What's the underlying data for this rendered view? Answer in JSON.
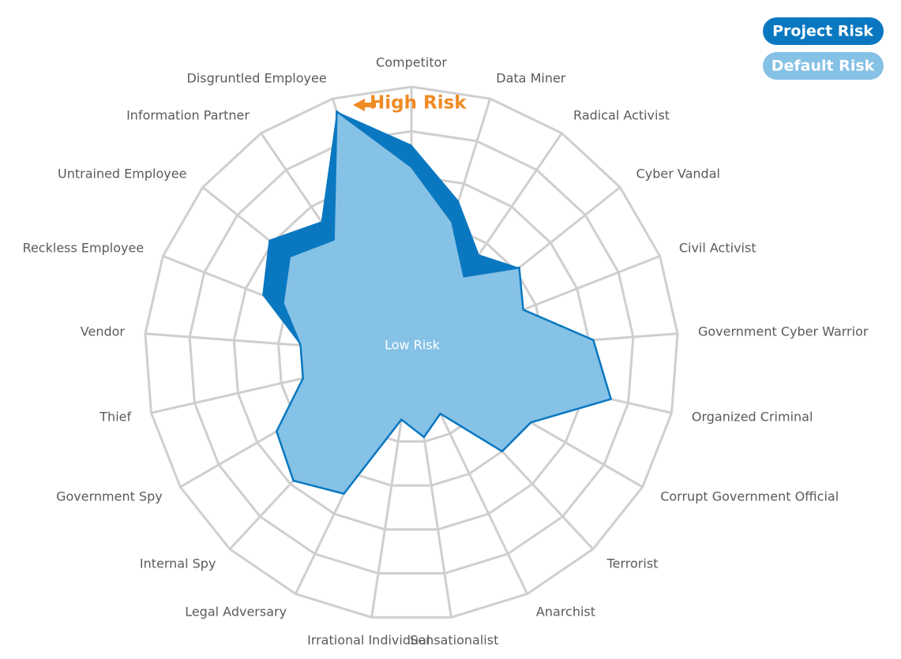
{
  "chart_data": {
    "type": "radar",
    "categories": [
      "Competitor",
      "Data Miner",
      "Radical Activist",
      "Cyber Vandal",
      "Civil Activist",
      "Government Cyber Warrior",
      "Organized Criminal",
      "Corrupt Government Official",
      "Terrorist",
      "Anarchist",
      "Sensationalist",
      "Irrational Individual",
      "Legal Adversary",
      "Internal Spy",
      "Government Spy",
      "Thief",
      "Vendor",
      "Reckless Employee",
      "Untrained Employee",
      "Information Partner",
      "Disgruntled Employee"
    ],
    "series": [
      {
        "name": "Project Risk",
        "color": "#0a78c0",
        "values": [
          4.7,
          3.6,
          2.7,
          3.1,
          2.7,
          4.1,
          4.6,
          3.1,
          3.0,
          1.5,
          1.9,
          1.5,
          3.5,
          3.9,
          3.5,
          2.5,
          2.5,
          3.6,
          4.1,
          3.6,
          5.7
        ]
      },
      {
        "name": "Default Risk",
        "color": "#86c1e6",
        "values": [
          4.2,
          3.1,
          2.1,
          3.1,
          2.7,
          4.1,
          4.6,
          3.1,
          3.0,
          1.5,
          1.9,
          1.5,
          3.5,
          3.9,
          3.5,
          2.5,
          2.5,
          3.1,
          3.5,
          3.1,
          5.7
        ]
      }
    ],
    "ylim": [
      0,
      6
    ],
    "yticks": [
      1,
      2,
      3,
      4,
      5,
      6
    ],
    "annotations": [
      "High Risk",
      "Low Risk"
    ]
  }
}
